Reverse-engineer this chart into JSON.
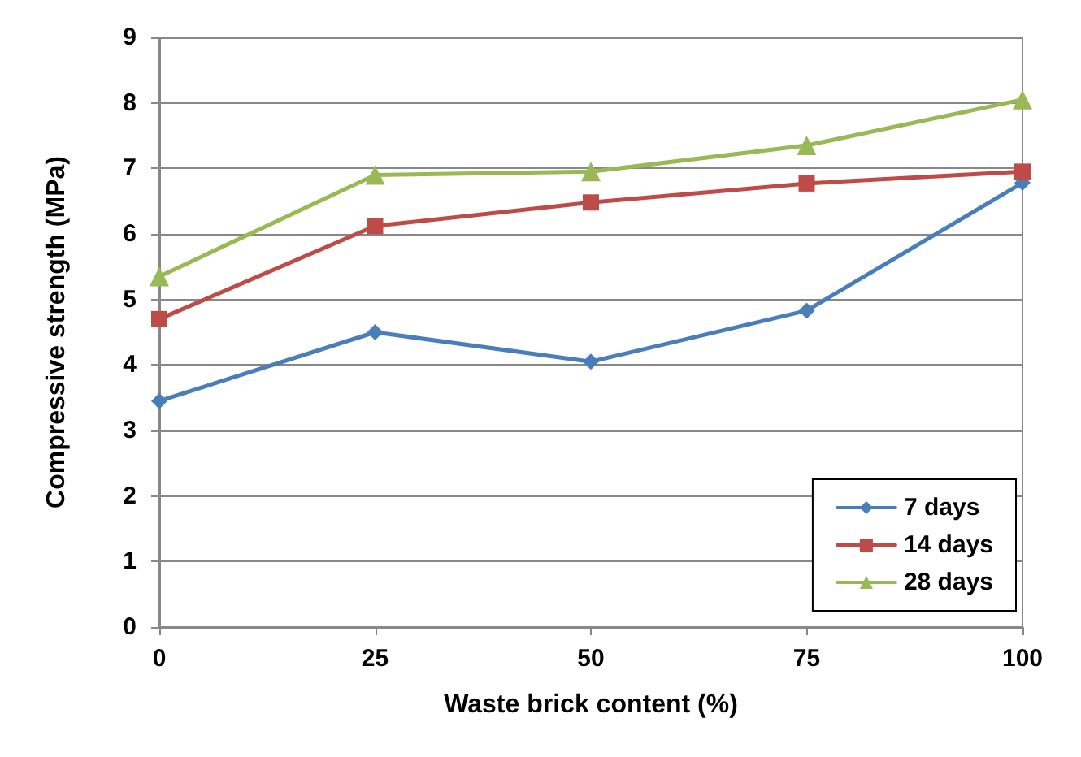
{
  "chart_data": {
    "type": "line",
    "xlabel": "Waste brick content (%)",
    "ylabel": "Compressive strength (MPa)",
    "x": [
      0,
      25,
      50,
      75,
      100
    ],
    "series": [
      {
        "name": "7 days",
        "color": "#4a7ebb",
        "marker": "diamond",
        "values": [
          3.45,
          4.5,
          4.05,
          4.83,
          6.78
        ]
      },
      {
        "name": "14 days",
        "color": "#be4b48",
        "marker": "square",
        "values": [
          4.7,
          6.12,
          6.48,
          6.77,
          6.95
        ]
      },
      {
        "name": "28 days",
        "color": "#98b954",
        "marker": "triangle",
        "values": [
          5.35,
          6.9,
          6.95,
          7.35,
          8.05
        ]
      }
    ],
    "xlim": [
      0,
      100
    ],
    "xticks": [
      0,
      25,
      50,
      75,
      100
    ],
    "ylim": [
      0,
      9
    ],
    "yticks": [
      0,
      1,
      2,
      3,
      4,
      5,
      6,
      7,
      8,
      9
    ],
    "grid": "y",
    "legend": "bottom right",
    "line_style": "solid"
  }
}
